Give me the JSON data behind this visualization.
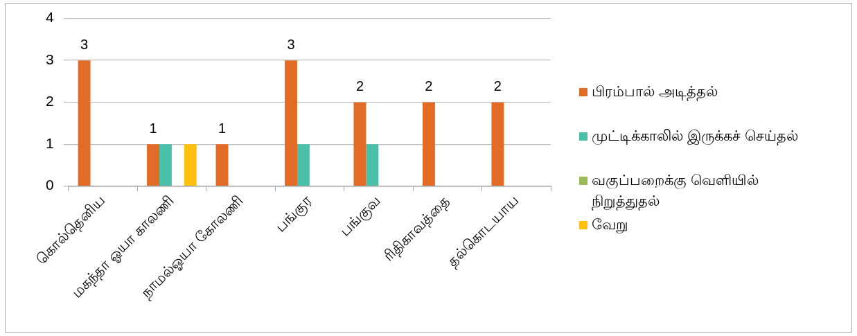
{
  "chart_data": {
    "type": "bar",
    "categories": [
      "கொல்தெனிய",
      "மகந்தா ஓயா காலணி",
      "நாமல்ஓயா கோலணி",
      "பங்குர",
      "பங்குவ",
      "ரிதிகாவத்தை",
      "தல்கொடயாய"
    ],
    "series": [
      {
        "name": "பிரம்பால் அடித்தல்",
        "color": "#e26b26",
        "values": [
          3,
          1,
          1,
          3,
          2,
          2,
          2
        ],
        "value_labels": [
          "3",
          "1",
          "1",
          "3",
          "2",
          "2",
          "2"
        ]
      },
      {
        "name": "முட்டிக்காலில் இருக்கச் செய்தல்",
        "color": "#4bc0a8",
        "values": [
          null,
          1,
          null,
          1,
          1,
          null,
          null
        ]
      },
      {
        "name": "வகுப்பறைக்கு வெளியில் நிறுத்துதல்",
        "color": "#9bbb59",
        "values": [
          null,
          null,
          null,
          null,
          null,
          null,
          null
        ]
      },
      {
        "name": "வேறு",
        "color": "#ffc010",
        "values": [
          null,
          1,
          null,
          null,
          null,
          null,
          null
        ]
      }
    ],
    "ylim": [
      0,
      4
    ],
    "yticks": [
      0,
      1,
      2,
      3,
      4
    ],
    "grid": "y",
    "legend": "right"
  }
}
